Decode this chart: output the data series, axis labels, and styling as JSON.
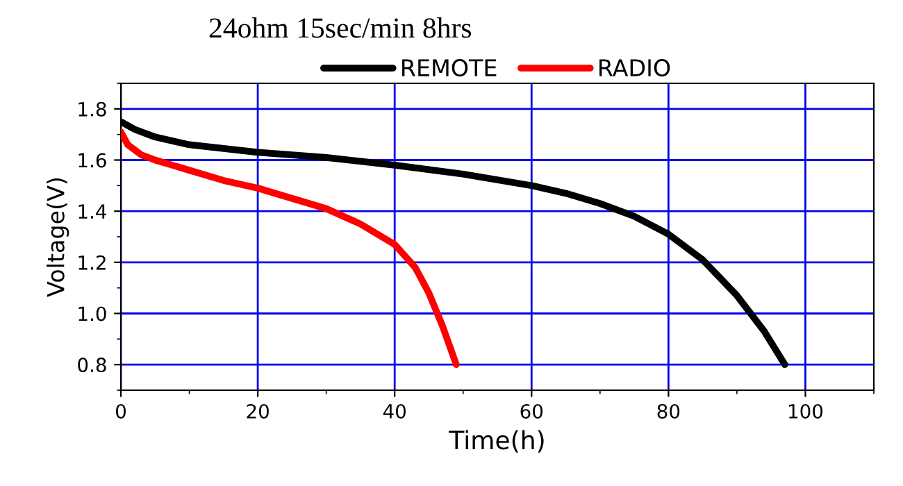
{
  "chart_data": {
    "type": "line",
    "title": "24ohm 15sec/min 8hrs",
    "xlabel": "Time(h)",
    "ylabel": "Voltage(V)",
    "xlim": [
      0,
      110
    ],
    "xticks": [
      0,
      20,
      40,
      60,
      80,
      100
    ],
    "ylim": [
      0.7,
      1.9
    ],
    "yticks": [
      0.8,
      {
        "value": 1,
        "label": "1.0"
      },
      1.2,
      1.4,
      1.6,
      1.8
    ],
    "grid": true,
    "legend": "top",
    "marker": "none",
    "line_style": "solid",
    "series": [
      {
        "name": "REMOTE",
        "color": "#000000",
        "x": [
          0,
          2,
          5,
          10,
          20,
          30,
          40,
          50,
          60,
          65,
          70,
          75,
          80,
          85,
          90,
          94,
          97
        ],
        "values": [
          1.75,
          1.72,
          1.69,
          1.66,
          1.63,
          1.61,
          1.58,
          1.545,
          1.5,
          1.47,
          1.43,
          1.38,
          1.31,
          1.21,
          1.07,
          0.93,
          0.8
        ]
      },
      {
        "name": "RADIO",
        "color": "#ff0000",
        "x": [
          0,
          1,
          3,
          5,
          10,
          15,
          20,
          25,
          30,
          35,
          40,
          43,
          45,
          47,
          49
        ],
        "values": [
          1.71,
          1.66,
          1.62,
          1.6,
          1.56,
          1.52,
          1.49,
          1.45,
          1.41,
          1.35,
          1.27,
          1.18,
          1.08,
          0.95,
          0.8
        ]
      }
    ]
  }
}
